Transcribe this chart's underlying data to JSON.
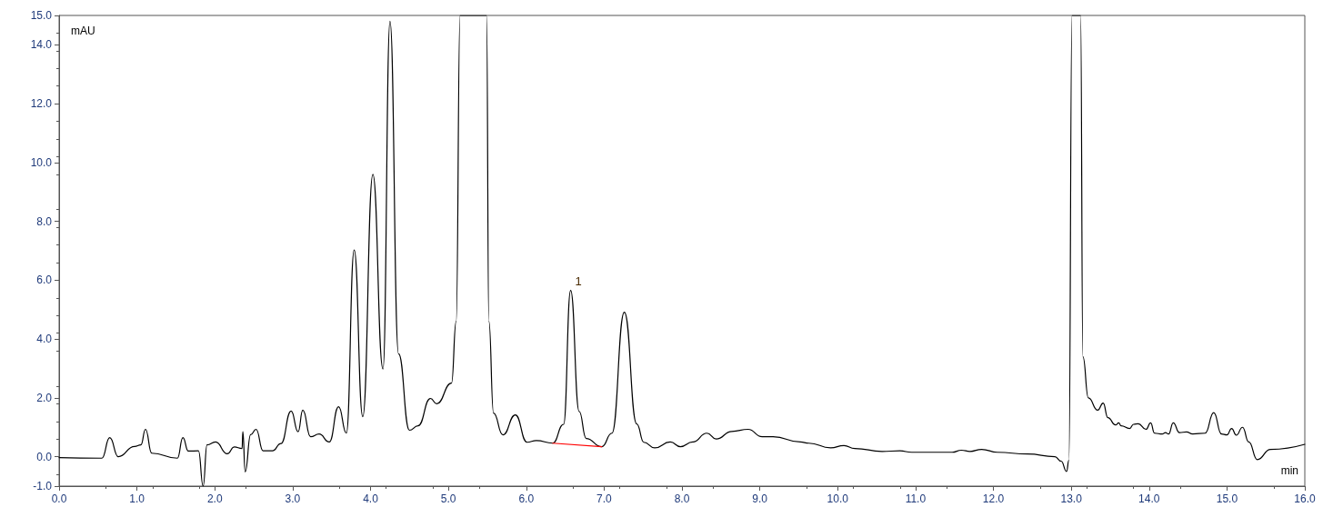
{
  "chart_data": {
    "type": "line",
    "xlabel": "min",
    "ylabel": "mAU",
    "grid": false,
    "marker": "none",
    "line_style": "solid",
    "xlim": [
      0,
      16
    ],
    "ylim": [
      -1,
      15
    ],
    "xticks": [
      {
        "value": 0,
        "label": "0.0"
      },
      {
        "value": 1,
        "label": "1.0"
      },
      {
        "value": 2,
        "label": "2.0"
      },
      {
        "value": 3,
        "label": "3.0"
      },
      {
        "value": 4,
        "label": "4.0"
      },
      {
        "value": 5,
        "label": "5.0"
      },
      {
        "value": 6,
        "label": "6.0"
      },
      {
        "value": 7,
        "label": "7.0"
      },
      {
        "value": 8,
        "label": "8.0"
      },
      {
        "value": 9,
        "label": "9.0"
      },
      {
        "value": 10,
        "label": "10.0"
      },
      {
        "value": 11,
        "label": "11.0"
      },
      {
        "value": 12,
        "label": "12.0"
      },
      {
        "value": 13,
        "label": "13.0"
      },
      {
        "value": 14,
        "label": "14.0"
      },
      {
        "value": 15,
        "label": "15.0"
      },
      {
        "value": 16,
        "label": "16.0"
      }
    ],
    "yticks": [
      {
        "value": -1,
        "label": "-1.0"
      },
      {
        "value": 0,
        "label": "0.0"
      },
      {
        "value": 2,
        "label": "2.0"
      },
      {
        "value": 4,
        "label": "4.0"
      },
      {
        "value": 6,
        "label": "6.0"
      },
      {
        "value": 8,
        "label": "8.0"
      },
      {
        "value": 10,
        "label": "10.0"
      },
      {
        "value": 12,
        "label": "12.0"
      },
      {
        "value": 14,
        "label": "14.0"
      },
      {
        "value": 15,
        "label": "15.0"
      }
    ],
    "annotations": [
      {
        "text": "1",
        "x": 6.57,
        "y": 5.65
      }
    ],
    "series": [
      {
        "color": "#000000",
        "x": [
          0,
          0.55,
          0.65,
          0.76,
          0.97,
          1.05,
          1.11,
          1.19,
          1.52,
          1.59,
          1.66,
          1.79,
          1.85,
          1.9,
          2.01,
          2.16,
          2.25,
          2.35,
          2.36,
          2.39,
          2.46,
          2.53,
          2.62,
          2.74,
          2.85,
          2.98,
          3.07,
          3.13,
          3.23,
          3.34,
          3.47,
          3.59,
          3.69,
          3.79,
          3.9,
          4.03,
          4.16,
          4.25,
          4.36,
          4.5,
          4.61,
          4.77,
          4.85,
          5.04,
          5.1,
          5.15,
          5.49,
          5.52,
          5.58,
          5.7,
          5.86,
          6.01,
          6.13,
          6.34,
          6.48,
          6.57,
          6.68,
          6.77,
          6.97,
          7.1,
          7.26,
          7.42,
          7.51,
          7.65,
          7.85,
          7.98,
          8.14,
          8.32,
          8.44,
          8.64,
          8.85,
          9.03,
          9.17,
          9.52,
          9.63,
          9.91,
          10.08,
          10.22,
          10.57,
          10.8,
          10.95,
          11.47,
          11.59,
          11.7,
          11.85,
          12.05,
          12.44,
          12.79,
          12.87,
          12.94,
          12.97,
          13.01,
          13.12,
          13.15,
          13.22,
          13.34,
          13.41,
          13.47,
          13.57,
          13.61,
          13.64,
          13.75,
          13.8,
          13.86,
          13.96,
          14.02,
          14.07,
          14.17,
          14.21,
          14.25,
          14.31,
          14.39,
          14.48,
          14.56,
          14.72,
          14.83,
          14.93,
          15,
          15.06,
          15.12,
          15.2,
          15.28,
          15.39,
          15.56,
          16
        ],
        "values": [
          -0.03,
          -0.05,
          0.65,
          0,
          0.35,
          0.4,
          0.93,
          0.12,
          -0.05,
          0.65,
          0.19,
          0.2,
          -1,
          0.4,
          0.5,
          0.1,
          0.33,
          0.28,
          0.85,
          -0.52,
          0.75,
          0.93,
          0.2,
          0.2,
          0.45,
          1.55,
          0.85,
          1.58,
          0.68,
          0.77,
          0.5,
          1.7,
          0.8,
          7.03,
          1.36,
          9.6,
          2.98,
          14.8,
          3.5,
          0.9,
          1.05,
          1.98,
          1.8,
          2.5,
          4.6,
          15,
          15,
          4.6,
          1.48,
          0.74,
          1.42,
          0.49,
          0.55,
          0.46,
          1.1,
          5.65,
          1.54,
          0.62,
          0.34,
          0.8,
          4.91,
          1.11,
          0.49,
          0.3,
          0.5,
          0.34,
          0.5,
          0.8,
          0.6,
          0.86,
          0.93,
          0.68,
          0.68,
          0.5,
          0.46,
          0.3,
          0.38,
          0.28,
          0.18,
          0.2,
          0.15,
          0.15,
          0.22,
          0.18,
          0.25,
          0.15,
          0.09,
          0,
          -0.15,
          -0.5,
          -0.12,
          15,
          15,
          3.4,
          2,
          1.58,
          1.82,
          1.33,
          1.08,
          1.15,
          1.05,
          0.96,
          1.1,
          1.12,
          0.93,
          1.15,
          0.8,
          0.77,
          0.82,
          0.77,
          1.15,
          0.82,
          0.84,
          0.77,
          0.8,
          1.5,
          0.77,
          0.74,
          0.96,
          0.73,
          1,
          0.5,
          -0.1,
          0.25,
          0.42
        ]
      },
      {
        "color": "#ff0000",
        "x": [
          6.34,
          6.97
        ],
        "values": [
          0.46,
          0.34
        ]
      }
    ]
  }
}
